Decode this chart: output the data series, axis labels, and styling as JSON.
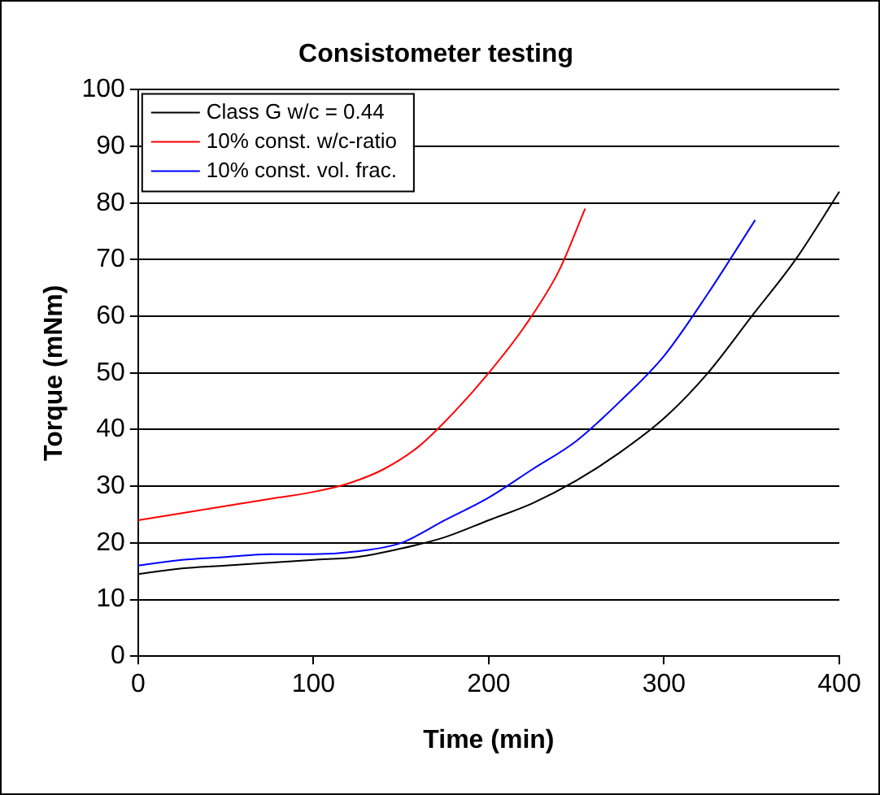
{
  "chart_data": {
    "type": "line",
    "title": "Consistometer testing",
    "xlabel": "Time (min)",
    "ylabel": "Torque (mNm)",
    "xlim": [
      0,
      400
    ],
    "xticks": [
      0,
      100,
      200,
      300,
      400
    ],
    "ylim": [
      0,
      100
    ],
    "yticks": [
      0,
      10,
      20,
      30,
      40,
      50,
      60,
      70,
      80,
      90,
      100
    ],
    "grid": "y",
    "legend": "top left",
    "marker": "none",
    "line_style": "solid",
    "series": [
      {
        "name": "Class G w/c = 0.44",
        "color": "#000000",
        "x": [
          0,
          25,
          50,
          75,
          100,
          125,
          150,
          175,
          200,
          225,
          250,
          275,
          300,
          325,
          350,
          375,
          400
        ],
        "values": [
          14.5,
          15.5,
          16,
          16.5,
          17,
          17.5,
          19,
          21,
          24,
          27,
          31,
          36,
          42,
          50,
          60,
          70,
          82
        ]
      },
      {
        "name": "10% const. w/c-ratio",
        "color": "#ff0000",
        "x": [
          0,
          20,
          40,
          60,
          80,
          100,
          120,
          140,
          160,
          180,
          200,
          220,
          240,
          255
        ],
        "values": [
          24,
          25,
          26,
          27,
          28,
          29,
          30.5,
          33,
          37,
          43,
          50,
          58,
          68,
          79
        ]
      },
      {
        "name": "10% const. vol. frac.",
        "color": "#0000ff",
        "x": [
          0,
          25,
          50,
          75,
          100,
          125,
          150,
          175,
          200,
          225,
          250,
          275,
          300,
          325,
          352
        ],
        "values": [
          16,
          17,
          17.5,
          18,
          18,
          18.5,
          20,
          24,
          28,
          33,
          38,
          45,
          53,
          64,
          77
        ]
      }
    ]
  }
}
